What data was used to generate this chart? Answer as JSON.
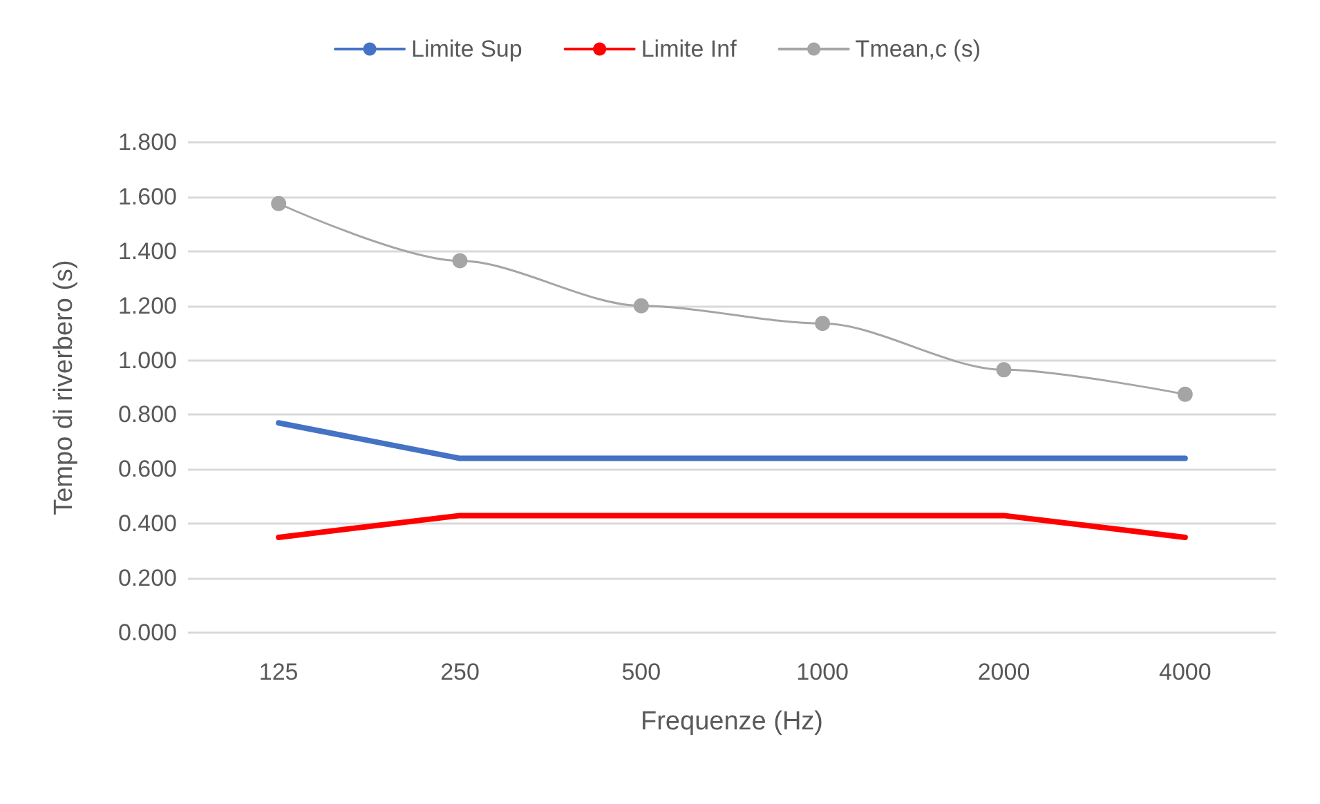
{
  "chart_data": {
    "type": "line",
    "xlabel": "Frequenze (Hz)",
    "ylabel": "Tempo di riverbero (s)",
    "categories": [
      "125",
      "250",
      "500",
      "1000",
      "2000",
      "4000"
    ],
    "series": [
      {
        "name": "Limite Sup",
        "color": "#4472c4",
        "marker": "none",
        "values": [
          0.77,
          0.64,
          0.64,
          0.64,
          0.64,
          0.64
        ]
      },
      {
        "name": "Limite Inf",
        "color": "#ff0000",
        "marker": "none",
        "values": [
          0.35,
          0.43,
          0.43,
          0.43,
          0.43,
          0.35
        ]
      },
      {
        "name": "Tmean,c (s)",
        "color": "#a5a5a5",
        "marker": "circle",
        "values": [
          1.575,
          1.365,
          1.2,
          1.135,
          0.965,
          0.875
        ]
      }
    ],
    "ylim": [
      0,
      1.8
    ],
    "yticks": [
      {
        "value": 0,
        "label": "0.000"
      },
      {
        "value": 0.2,
        "label": "0.200"
      },
      {
        "value": 0.4,
        "label": "0.400"
      },
      {
        "value": 0.6,
        "label": "0.600"
      },
      {
        "value": 0.8,
        "label": "0.800"
      },
      {
        "value": 1,
        "label": "1.000"
      },
      {
        "value": 1.2,
        "label": "1.200"
      },
      {
        "value": 1.4,
        "label": "1.400"
      },
      {
        "value": 1.6,
        "label": "1.600"
      },
      {
        "value": 1.8,
        "label": "1.800"
      }
    ],
    "grid": "y",
    "legend": "top",
    "line_style": "solid"
  }
}
